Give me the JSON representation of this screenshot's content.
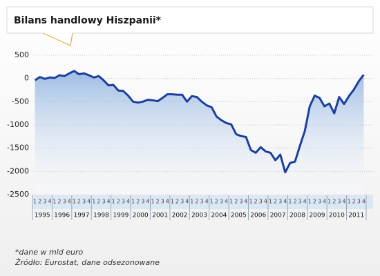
{
  "chart_data": {
    "type": "line",
    "title": "Bilans handlowy Hiszpanii*",
    "years": [
      "1995",
      "1996",
      "1997",
      "1998",
      "1999",
      "2000",
      "2001",
      "2002",
      "2003",
      "2004",
      "2005",
      "2006",
      "2007",
      "2008",
      "2009",
      "2010",
      "2011"
    ],
    "quarters": [
      "1",
      "2",
      "3",
      "4"
    ],
    "values": [
      -40,
      30,
      -10,
      20,
      10,
      70,
      50,
      110,
      160,
      90,
      110,
      70,
      20,
      50,
      -40,
      -150,
      -140,
      -260,
      -270,
      -370,
      -500,
      -520,
      -500,
      -460,
      -470,
      -490,
      -420,
      -340,
      -340,
      -350,
      -350,
      -500,
      -380,
      -400,
      -500,
      -580,
      -620,
      -820,
      -900,
      -960,
      -990,
      -1200,
      -1240,
      -1260,
      -1540,
      -1600,
      -1480,
      -1570,
      -1600,
      -1760,
      -1640,
      -2020,
      -1820,
      -1790,
      -1450,
      -1130,
      -600,
      -370,
      -420,
      -600,
      -540,
      -750,
      -400,
      -550,
      -380,
      -240,
      -60,
      80
    ],
    "color": "#1c3f9e",
    "ylim": [
      -2500,
      500
    ],
    "yticks": [
      500,
      0,
      -500,
      -1000,
      -1500,
      -2000,
      -2500
    ],
    "grid": true,
    "notes": [
      "*dane w mld euro",
      "Źródło: Eurostat, dane odsezonowane"
    ]
  }
}
